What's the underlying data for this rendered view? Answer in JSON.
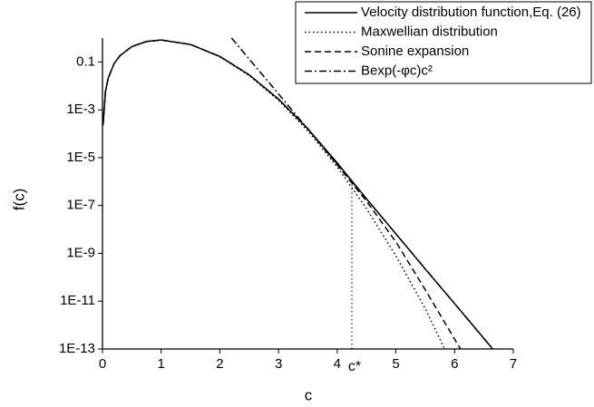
{
  "chart_data": {
    "type": "line",
    "x_label": "c",
    "y_label": "f(c)",
    "log_y": true,
    "xlim": [
      0,
      7
    ],
    "xticks": [
      0,
      1,
      2,
      3,
      4,
      5,
      6,
      7
    ],
    "ylim": [
      1e-13,
      1
    ],
    "yticks": [
      {
        "value": 0.1,
        "label": "0.1"
      },
      {
        "value": 0.001,
        "label": "1E-3"
      },
      {
        "value": 1e-05,
        "label": "1E-5"
      },
      {
        "value": 1e-07,
        "label": "1E-7"
      },
      {
        "value": 1e-09,
        "label": "1E-9"
      },
      {
        "value": 1e-11,
        "label": "1E-11"
      },
      {
        "value": 1e-13,
        "label": "1E-13"
      }
    ],
    "legend": "top-right",
    "series": [
      {
        "name": "Velocity distribution function,Eq. (26)",
        "color": "#000000",
        "dash": "solid",
        "x": [
          0.01,
          0.05,
          0.1,
          0.2,
          0.3,
          0.5,
          0.75,
          1,
          1.5,
          2,
          2.5,
          3,
          3.5,
          4,
          4.5,
          5,
          5.5,
          6,
          6.65
        ],
        "values": [
          0.000226,
          0.0056,
          0.0223,
          0.087,
          0.186,
          0.44,
          0.72,
          0.83,
          0.54,
          0.17,
          0.029,
          0.0028,
          0.00016,
          6e-06,
          1.9e-07,
          6.5e-09,
          2.2e-10,
          7.9e-12,
          1e-13
        ]
      },
      {
        "name": "Maxwellian distribution",
        "color": "#000000",
        "dash": "dotted",
        "x": [
          0.01,
          0.05,
          0.1,
          0.2,
          0.3,
          0.5,
          0.75,
          1,
          1.5,
          2,
          2.5,
          3,
          3.5,
          4,
          4.5,
          5,
          5.5,
          5.83
        ],
        "values": [
          0.000226,
          0.0056,
          0.0223,
          0.087,
          0.186,
          0.44,
          0.72,
          0.83,
          0.54,
          0.165,
          0.027,
          0.0025,
          0.000132,
          4.1e-06,
          7.3e-08,
          7.8e-10,
          4.9e-12,
          1e-13
        ]
      },
      {
        "name": "Sonine expansion",
        "color": "#000000",
        "dash": "dashed",
        "x": [
          0.01,
          0.05,
          0.1,
          0.2,
          0.3,
          0.5,
          0.75,
          1,
          1.5,
          2,
          2.5,
          3,
          3.5,
          4,
          4.5,
          5,
          5.5,
          6.1
        ],
        "values": [
          0.000226,
          0.0056,
          0.0223,
          0.087,
          0.186,
          0.44,
          0.72,
          0.83,
          0.54,
          0.17,
          0.029,
          0.0028,
          0.00016,
          5e-06,
          1.5e-07,
          3e-09,
          3e-11,
          1e-13
        ]
      },
      {
        "name": "Bexp(-φc)c²",
        "color": "#000000",
        "dash": "dashdot",
        "x": [
          2.2,
          3,
          4,
          5,
          6,
          6.65
        ],
        "values": [
          1,
          0.0046,
          5.4e-06,
          6.5e-09,
          7.9e-12,
          1e-13
        ]
      }
    ],
    "reference_line": {
      "label": "c*",
      "x": 4.25,
      "y": 1e-06
    }
  }
}
